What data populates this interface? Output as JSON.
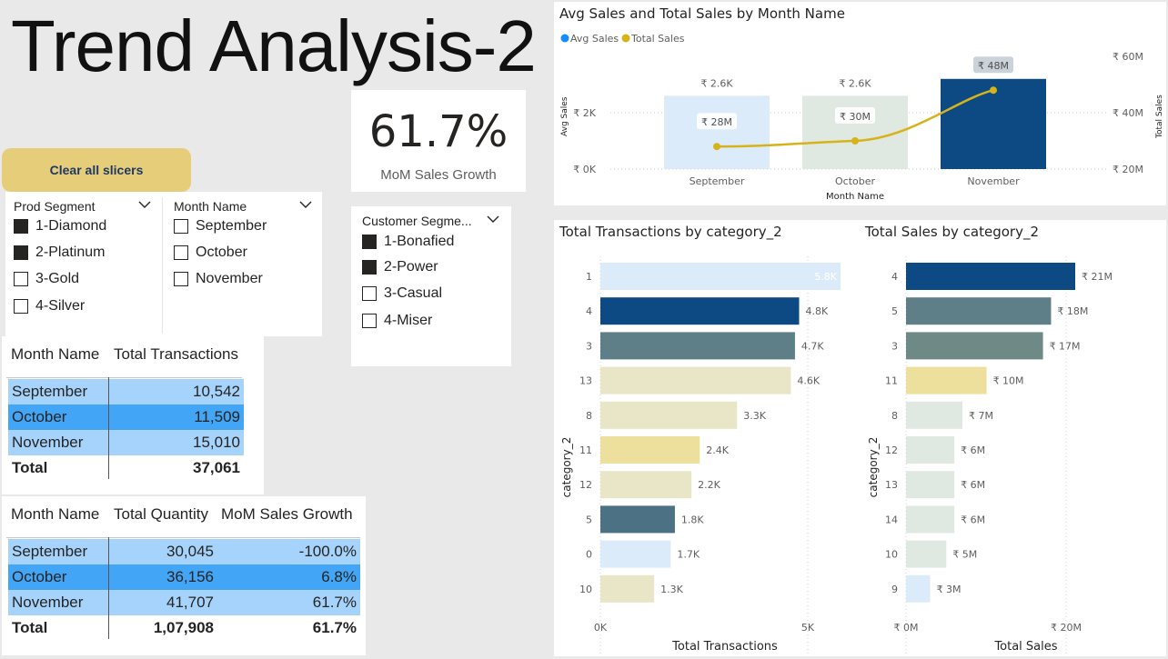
{
  "page": {
    "title": "Trend Analysis-2"
  },
  "kpi": {
    "value": "61.7%",
    "label": "MoM Sales Growth"
  },
  "clear_button": {
    "label": "Clear all slicers"
  },
  "slicers": {
    "prod_segment": {
      "header": "Prod Segment",
      "items": [
        {
          "label": "1-Diamond",
          "checked": true
        },
        {
          "label": "2-Platinum",
          "checked": true
        },
        {
          "label": "3-Gold",
          "checked": false
        },
        {
          "label": "4-Silver",
          "checked": false
        }
      ]
    },
    "month_name": {
      "header": "Month Name",
      "items": [
        {
          "label": "September",
          "checked": false
        },
        {
          "label": "October",
          "checked": false
        },
        {
          "label": "November",
          "checked": false
        }
      ]
    },
    "customer_segment": {
      "header": "Customer Segme...",
      "items": [
        {
          "label": "1-Bonafied",
          "checked": true
        },
        {
          "label": "2-Power",
          "checked": true
        },
        {
          "label": "3-Casual",
          "checked": false
        },
        {
          "label": "4-Miser",
          "checked": false
        }
      ]
    }
  },
  "table_transactions": {
    "headers": [
      "Month Name",
      "Total Transactions"
    ],
    "rows": [
      {
        "month": "September",
        "value": "10,542"
      },
      {
        "month": "October",
        "value": "11,509"
      },
      {
        "month": "November",
        "value": "15,010"
      }
    ],
    "total": {
      "label": "Total",
      "value": "37,061"
    }
  },
  "table_quantity": {
    "headers": [
      "Month Name",
      "Total Quantity",
      "MoM Sales Growth"
    ],
    "rows": [
      {
        "month": "September",
        "qty": "30,045",
        "growth": "-100.0%"
      },
      {
        "month": "October",
        "qty": "36,156",
        "growth": "6.8%"
      },
      {
        "month": "November",
        "qty": "41,707",
        "growth": "61.7%"
      }
    ],
    "total": {
      "label": "Total",
      "qty": "1,07,908",
      "growth": "61.7%"
    }
  },
  "colors": {
    "navy": "#0d4a84",
    "slate": "#5e7f88",
    "light_blue": "#dcebfa",
    "pale_gray_green": "#e0e8e2",
    "beige": "#e8e6c6",
    "gold_pale": "#ede09d",
    "line_gold": "#d6b318",
    "avg_dot_blue": "#118dff",
    "header_blue": "#a6d3fb",
    "row_dark_blue": "#42a5f5",
    "button_gold": "#e6cd7a"
  },
  "chart_data": [
    {
      "type": "bar",
      "title": "Avg Sales and Total Sales by Month Name",
      "legend": {
        "placement": "top-left",
        "entries": [
          "Avg Sales",
          "Total Sales"
        ]
      },
      "categories": [
        "September",
        "October",
        "November"
      ],
      "xlabel": "Month Name",
      "ylabel": "Avg Sales",
      "y2label": "Total Sales",
      "y_ticks": [
        "₹ 0K",
        "₹ 2K"
      ],
      "y2_ticks": [
        "₹ 20M",
        "₹ 40M",
        "₹ 60M"
      ],
      "ylim": [
        0,
        4000
      ],
      "y2lim": [
        20,
        60
      ],
      "series": [
        {
          "name": "Avg Sales",
          "kind": "bar",
          "values": [
            2600,
            2600,
            3200
          ],
          "labels": [
            "₹ 2.6K",
            "₹ 2.6K",
            "₹ 3.2K"
          ],
          "colors": [
            "#dcebfa",
            "#e0e8e2",
            "#0d4a84"
          ]
        },
        {
          "name": "Total Sales",
          "kind": "line",
          "values": [
            28,
            30,
            48
          ],
          "labels": [
            "₹ 28M",
            "₹ 30M",
            "₹ 48M"
          ]
        }
      ]
    },
    {
      "type": "bar",
      "orientation": "horizontal",
      "title": "Total Transactions by category_2",
      "xlabel": "Total Transactions",
      "ylabel": "category_2",
      "x_ticks": [
        "0K",
        "5K"
      ],
      "xlim": [
        0,
        5800
      ],
      "categories": [
        "1",
        "4",
        "3",
        "13",
        "8",
        "11",
        "12",
        "5",
        "0",
        "10"
      ],
      "values": [
        5800,
        4800,
        4700,
        4600,
        3300,
        2400,
        2200,
        1800,
        1700,
        1300
      ],
      "labels": [
        "5.8K",
        "4.8K",
        "4.7K",
        "4.6K",
        "3.3K",
        "2.4K",
        "2.2K",
        "1.8K",
        "1.7K",
        "1.3K"
      ],
      "colors": [
        "#dcebfa",
        "#0d4a84",
        "#5e7f88",
        "#e8e6c6",
        "#e8e6c6",
        "#ede09d",
        "#e8e6c6",
        "#4c7185",
        "#dcebfa",
        "#e8e6c6"
      ]
    },
    {
      "type": "bar",
      "orientation": "horizontal",
      "title": "Total Sales by category_2",
      "xlabel": "Total Sales",
      "ylabel": "category_2",
      "x_ticks": [
        "₹ 0M",
        "₹ 20M"
      ],
      "xlim": [
        0,
        21
      ],
      "categories": [
        "4",
        "5",
        "3",
        "11",
        "8",
        "12",
        "13",
        "14",
        "10",
        "9"
      ],
      "values": [
        21,
        18,
        17,
        10,
        7,
        6,
        6,
        6,
        5,
        3
      ],
      "labels": [
        "₹ 21M",
        "₹ 18M",
        "₹ 17M",
        "₹ 10M",
        "₹ 7M",
        "₹ 6M",
        "₹ 6M",
        "₹ 6M",
        "₹ 5M",
        "₹ 3M"
      ],
      "colors": [
        "#0d4a84",
        "#5e7f88",
        "#6f8a86",
        "#ede09d",
        "#e0e8e2",
        "#e0e8e2",
        "#e0e8e2",
        "#e0e8e2",
        "#e0e8e2",
        "#dcebfa"
      ]
    }
  ]
}
